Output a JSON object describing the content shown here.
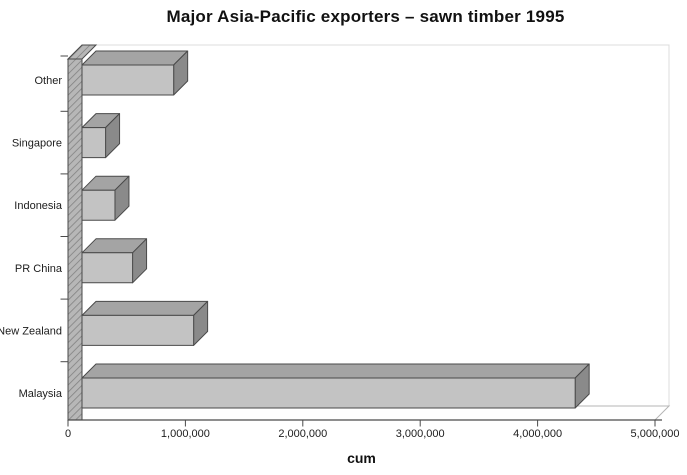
{
  "chart_data": {
    "type": "bar",
    "orientation": "horizontal",
    "style": "3d",
    "title": "Major Asia-Pacific exporters – sawn timber 1995",
    "xlabel": "cum",
    "categories": [
      "Other",
      "Singapore",
      "Indonesia",
      "PR China",
      "New Zealand",
      "Malaysia"
    ],
    "values": [
      900000,
      320000,
      400000,
      550000,
      1070000,
      4320000
    ],
    "xlim": [
      0,
      5000000
    ],
    "x_tick_labels": [
      "0",
      "1,000,000",
      "2,000,000",
      "3,000,000",
      "4,000,000",
      "5,000,000"
    ],
    "grid": false,
    "legend": "none",
    "colors": {
      "bar_front": "#c3c3c3",
      "bar_top": "#a4a4a4",
      "bar_side": "#8a8a8a",
      "axis_wall": "#b7b7b7",
      "axis_wall_hatch": "#828282",
      "edge": "#4a4a4a",
      "faint_frame": "#dcdcdc",
      "floor_edge": "#b5b5b5",
      "background": "#ffffff"
    }
  }
}
